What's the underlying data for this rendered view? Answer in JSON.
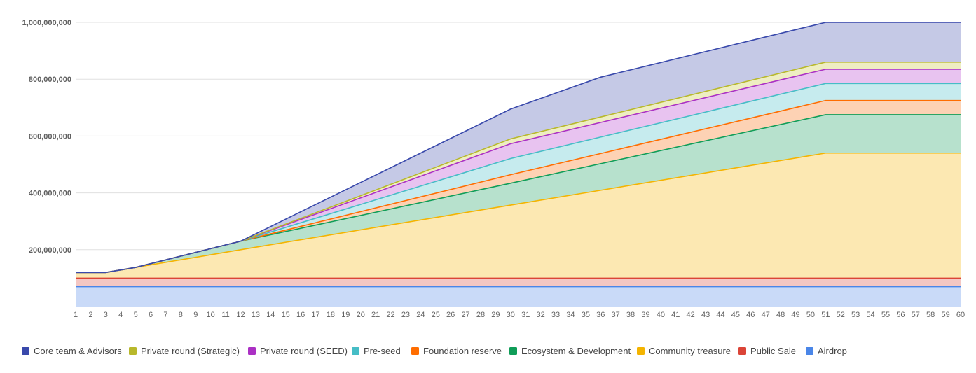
{
  "chart_data": {
    "type": "area",
    "stacked": true,
    "title": "",
    "xlabel": "",
    "ylabel": "",
    "x_range": [
      1,
      60
    ],
    "ylim": [
      0,
      1000000000
    ],
    "y_ticks": [
      {
        "value": 200000000,
        "label": "200,000,000"
      },
      {
        "value": 400000000,
        "label": "400,000,000"
      },
      {
        "value": 600000000,
        "label": "600,000,000"
      },
      {
        "value": 800000000,
        "label": "800,000,000"
      },
      {
        "value": 1000000000,
        "label": "1,000,000,000"
      }
    ],
    "grid": true,
    "legend_position": "bottom",
    "series": [
      {
        "name": "Airdrop",
        "color": "#4a86e8",
        "fill": "#c9daf8",
        "points": [
          [
            1,
            70000000
          ],
          [
            60,
            70000000
          ]
        ]
      },
      {
        "name": "Public Sale",
        "color": "#db4437",
        "fill": "#f4c7c3",
        "points": [
          [
            1,
            30000000
          ],
          [
            60,
            30000000
          ]
        ]
      },
      {
        "name": "Community treasure",
        "color": "#f4b400",
        "fill": "#fce8b2",
        "points": [
          [
            1,
            20000000
          ],
          [
            3,
            20000000
          ],
          [
            12,
            100000000
          ],
          [
            51,
            440000000
          ],
          [
            60,
            440000000
          ]
        ]
      },
      {
        "name": "Ecosystem & Development",
        "color": "#0f9d58",
        "fill": "#b7e1cd",
        "points": [
          [
            1,
            0
          ],
          [
            5,
            0
          ],
          [
            12,
            30000000
          ],
          [
            30,
            77000000
          ],
          [
            51,
            135000000
          ],
          [
            60,
            135000000
          ]
        ]
      },
      {
        "name": "Foundation reserve",
        "color": "#ff6d00",
        "fill": "#fdd2b4",
        "points": [
          [
            1,
            0
          ],
          [
            12,
            0
          ],
          [
            30,
            30000000
          ],
          [
            51,
            50000000
          ],
          [
            60,
            50000000
          ]
        ]
      },
      {
        "name": "Pre-seed",
        "color": "#46bdc6",
        "fill": "#c6ebee",
        "points": [
          [
            1,
            0
          ],
          [
            12,
            0
          ],
          [
            30,
            57000000
          ],
          [
            51,
            60000000
          ],
          [
            60,
            60000000
          ]
        ]
      },
      {
        "name": "Private round (SEED)",
        "color": "#ab30c4",
        "fill": "#e8c3f0",
        "points": [
          [
            1,
            0
          ],
          [
            12,
            0
          ],
          [
            30,
            52000000
          ],
          [
            51,
            50000000
          ],
          [
            60,
            50000000
          ]
        ]
      },
      {
        "name": "Private round (Strategic)",
        "color": "#b8b82b",
        "fill": "#eeeec2",
        "points": [
          [
            1,
            0
          ],
          [
            12,
            0
          ],
          [
            30,
            17000000
          ],
          [
            51,
            25000000
          ],
          [
            60,
            25000000
          ]
        ]
      },
      {
        "name": "Core team & Advisors",
        "color": "#3949ab",
        "fill": "#c5c9e6",
        "points": [
          [
            1,
            0
          ],
          [
            12,
            0
          ],
          [
            30,
            105000000
          ],
          [
            36,
            140000000
          ],
          [
            51,
            140000000
          ],
          [
            60,
            140000000
          ]
        ]
      }
    ],
    "legend": [
      {
        "name": "Core team & Advisors",
        "color": "#3949ab"
      },
      {
        "name": "Private round (Strategic)",
        "color": "#b8b82b"
      },
      {
        "name": "Private round (SEED)",
        "color": "#ab30c4"
      },
      {
        "name": "Pre-seed",
        "color": "#46bdc6"
      },
      {
        "name": "Foundation reserve",
        "color": "#ff6d00"
      },
      {
        "name": "Ecosystem & Development",
        "color": "#0f9d58"
      },
      {
        "name": "Community treasure",
        "color": "#f4b400"
      },
      {
        "name": "Public Sale",
        "color": "#db4437"
      },
      {
        "name": "Airdrop",
        "color": "#4a86e8"
      }
    ]
  }
}
